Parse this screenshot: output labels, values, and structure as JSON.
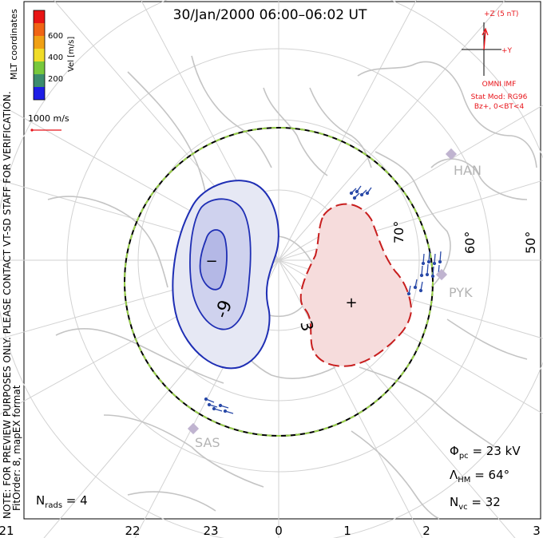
{
  "title": "30/Jan/2000 06:00–06:02 UT",
  "side_note_1": "NOTE: FOR PREVIEW PURPOSES ONLY. PLEASE CONTACT VT-SD STAFF FOR VERIFICATION.",
  "side_note_2": "FitOrder: 8, mapEX format",
  "coord_label": "MLT coordinates",
  "colorbar": {
    "label": "Vel [m/s]",
    "ticks": [
      "600",
      "400",
      "200"
    ],
    "colors": [
      "#1e1ee6",
      "#2868c8",
      "#3c8c6e",
      "#78c83c",
      "#f0dc28",
      "#f08c14",
      "#e81414"
    ]
  },
  "vector_scale": "1000 m/s",
  "imf": {
    "z_label": "+Z (5 nT)",
    "y_label": "+Y",
    "source": "OMNI IMF",
    "model": "Stat Mod: RG96",
    "condition": "Bz+, 0<BT<4",
    "color": "#e8141a"
  },
  "latitude_labels": [
    "70°",
    "60°",
    "50°"
  ],
  "mlt_labels": [
    "21",
    "22",
    "23",
    "0",
    "1",
    "2",
    "3"
  ],
  "radars": [
    "HAN",
    "PYK",
    "SAS"
  ],
  "contours": {
    "negative_label": "-9",
    "positive_label": "3",
    "min_marker": "−",
    "max_marker": "+"
  },
  "stats": {
    "phi_pc": "Φpc = 23 kV",
    "lambda_hm": "ΛHM = 64°",
    "n_vc": "Nvc = 32",
    "n_rads": "Nrads = 4"
  },
  "colors": {
    "negative_line": "#1e2eb4",
    "negative_fill": "#e6e8f4",
    "negative_core": "#b4b8e6",
    "positive_line": "#c81e1e",
    "positive_fill": "#f6dcdc",
    "land": "#c8c8c8",
    "grid": "#d2d2d2",
    "hmb_dash": "#9ad24a"
  }
}
